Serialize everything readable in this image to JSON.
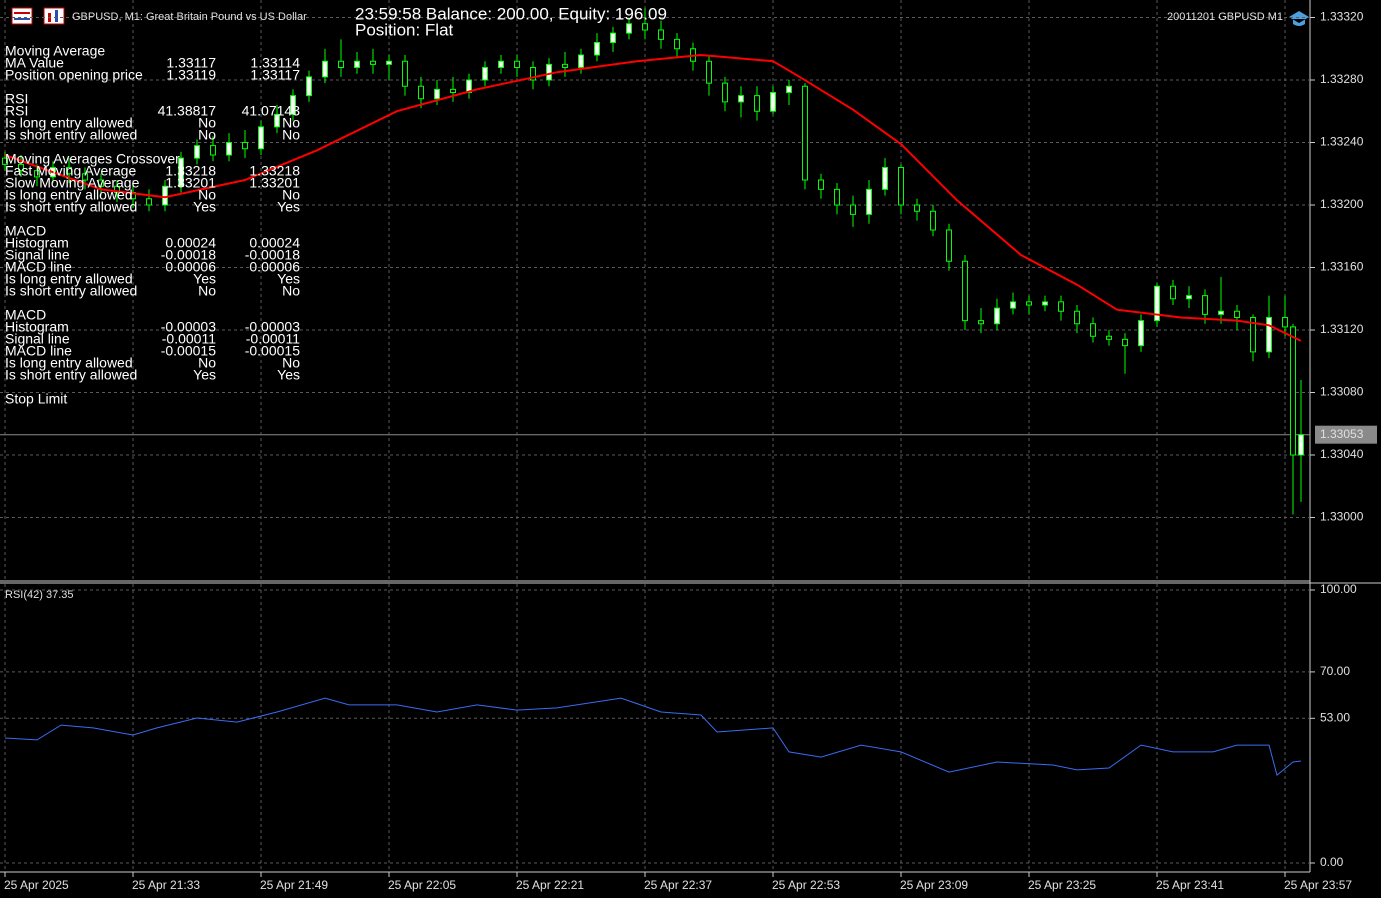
{
  "header": {
    "symbol": "GBPUSD, M1:  Great Britain Pound vs US Dollar",
    "status": "23:59:58 Balance: 200.00, Equity: 196.09",
    "position": "Position: Flat",
    "expert": "20011201 GBPUSD M1"
  },
  "info": [
    {
      "title": "Moving Average",
      "rows": [
        [
          "MA Value",
          "1.33117",
          "1.33114"
        ],
        [
          "Position opening price",
          "1.33119",
          "1.33117"
        ]
      ]
    },
    {
      "title": "RSI",
      "rows": [
        [
          "RSI",
          "41.38817",
          "41.07143"
        ],
        [
          "Is long entry allowed",
          "No",
          "No"
        ],
        [
          "Is short entry allowed",
          "No",
          "No"
        ]
      ]
    },
    {
      "title": "Moving Averages Crossover",
      "rows": [
        [
          "Fast Moving Average",
          "1.33218",
          "1.33218"
        ],
        [
          "Slow Moving Average",
          "1.33201",
          "1.33201"
        ],
        [
          "Is long entry allowed",
          "No",
          "No"
        ],
        [
          "Is short entry allowed",
          "Yes",
          "Yes"
        ]
      ]
    },
    {
      "title": "MACD",
      "rows": [
        [
          "Histogram",
          "0.00024",
          "0.00024"
        ],
        [
          "Signal line",
          "-0.00018",
          "-0.00018"
        ],
        [
          "MACD line",
          "0.00006",
          "0.00006"
        ],
        [
          "Is long entry allowed",
          "Yes",
          "Yes"
        ],
        [
          "Is short entry allowed",
          "No",
          "No"
        ]
      ]
    },
    {
      "title": "MACD",
      "rows": [
        [
          "Histogram",
          "-0.00003",
          "-0.00003"
        ],
        [
          "Signal line",
          "-0.00011",
          "-0.00011"
        ],
        [
          "MACD line",
          "-0.00015",
          "-0.00015"
        ],
        [
          "Is long entry allowed",
          "No",
          "No"
        ],
        [
          "Is short entry allowed",
          "Yes",
          "Yes"
        ]
      ]
    },
    {
      "title": "Stop Limit",
      "rows": []
    }
  ],
  "chart_data": [
    {
      "type": "candlestick",
      "xlim": [
        0,
        163
      ],
      "ylim": [
        1.3296,
        1.33328
      ],
      "yticks": [
        {
          "value": 1.33,
          "label": "1.33000"
        },
        {
          "value": 1.3304,
          "label": "1.33040"
        },
        {
          "value": 1.3308,
          "label": "1.33080"
        },
        {
          "value": 1.3312,
          "label": "1.33120"
        },
        {
          "value": 1.3316,
          "label": "1.33160"
        },
        {
          "value": 1.332,
          "label": "1.33200"
        },
        {
          "value": 1.3324,
          "label": "1.33240"
        },
        {
          "value": 1.3328,
          "label": "1.33280"
        },
        {
          "value": 1.3332,
          "label": "1.33320"
        }
      ],
      "grid": true,
      "up_color": "#ffffff",
      "down_color": "#000000",
      "wick_color": "#00ff00",
      "current_price": 1.33053,
      "x": [
        0,
        2,
        4,
        6,
        8,
        10,
        12,
        14,
        16,
        18,
        20,
        22,
        24,
        26,
        28,
        30,
        32,
        34,
        36,
        38,
        40,
        42,
        44,
        46,
        48,
        50,
        52,
        54,
        56,
        58,
        60,
        62,
        64,
        66,
        68,
        70,
        72,
        74,
        76,
        78,
        80,
        82,
        84,
        86,
        88,
        90,
        92,
        94,
        96,
        98,
        100,
        102,
        104,
        106,
        108,
        110,
        112,
        114,
        116,
        118,
        120,
        122,
        124,
        126,
        128,
        130,
        132,
        134,
        136,
        138,
        140,
        142,
        144,
        146,
        148,
        150,
        152,
        154,
        156,
        158,
        160,
        161,
        162
      ],
      "open": [
        1.3323,
        1.33226,
        1.33222,
        1.33218,
        1.33224,
        1.3322,
        1.33216,
        1.33212,
        1.33208,
        1.33204,
        1.332,
        1.33212,
        1.3323,
        1.33238,
        1.33232,
        1.3324,
        1.33236,
        1.3325,
        1.33258,
        1.3327,
        1.33282,
        1.33292,
        1.33288,
        1.33292,
        1.3329,
        1.33292,
        1.33276,
        1.33268,
        1.33274,
        1.33272,
        1.3328,
        1.33288,
        1.33292,
        1.33288,
        1.3328,
        1.3329,
        1.33288,
        1.33296,
        1.33304,
        1.3331,
        1.33316,
        1.33312,
        1.33306,
        1.333,
        1.33292,
        1.33278,
        1.33266,
        1.3327,
        1.3326,
        1.33272,
        1.33276,
        1.33216,
        1.3321,
        1.332,
        1.33194,
        1.3321,
        1.33224,
        1.332,
        1.33196,
        1.33184,
        1.33164,
        1.33126,
        1.33124,
        1.33134,
        1.33138,
        1.33136,
        1.33138,
        1.33132,
        1.33124,
        1.33116,
        1.33114,
        1.3311,
        1.33126,
        1.33148,
        1.3314,
        1.33142,
        1.3313,
        1.33132,
        1.33128,
        1.33106,
        1.33128,
        1.33122,
        1.3304
      ],
      "high": [
        1.33234,
        1.33232,
        1.33226,
        1.33228,
        1.3323,
        1.33224,
        1.3322,
        1.33216,
        1.33214,
        1.3321,
        1.33216,
        1.33234,
        1.33242,
        1.33244,
        1.33246,
        1.33248,
        1.33254,
        1.33264,
        1.33274,
        1.33286,
        1.333,
        1.33306,
        1.33298,
        1.333,
        1.33296,
        1.33296,
        1.33282,
        1.3328,
        1.33282,
        1.33284,
        1.33292,
        1.33296,
        1.33296,
        1.33292,
        1.33294,
        1.33298,
        1.333,
        1.3331,
        1.33314,
        1.3332,
        1.33326,
        1.33318,
        1.3331,
        1.33304,
        1.33296,
        1.33282,
        1.33276,
        1.33276,
        1.33276,
        1.3328,
        1.33278,
        1.3322,
        1.33214,
        1.33206,
        1.33216,
        1.3323,
        1.33226,
        1.33204,
        1.332,
        1.33188,
        1.33168,
        1.33134,
        1.3314,
        1.33144,
        1.33142,
        1.33142,
        1.33142,
        1.33136,
        1.33128,
        1.3312,
        1.33118,
        1.3313,
        1.3315,
        1.33152,
        1.33148,
        1.33146,
        1.33154,
        1.33136,
        1.3313,
        1.33142,
        1.33142,
        1.33124,
        1.33088
      ],
      "low": [
        1.33222,
        1.33218,
        1.33212,
        1.33214,
        1.33214,
        1.3321,
        1.33206,
        1.33202,
        1.33198,
        1.33196,
        1.33196,
        1.33208,
        1.33226,
        1.33228,
        1.33228,
        1.3323,
        1.33232,
        1.33246,
        1.33254,
        1.33266,
        1.33278,
        1.33282,
        1.33284,
        1.33284,
        1.3328,
        1.3327,
        1.33262,
        1.33264,
        1.33266,
        1.33268,
        1.33276,
        1.33284,
        1.33282,
        1.33274,
        1.33276,
        1.33282,
        1.33284,
        1.33292,
        1.33298,
        1.33306,
        1.33306,
        1.333,
        1.33294,
        1.33286,
        1.3327,
        1.3326,
        1.33256,
        1.33254,
        1.33258,
        1.33264,
        1.3321,
        1.33204,
        1.33194,
        1.33186,
        1.33188,
        1.33206,
        1.33194,
        1.3319,
        1.3318,
        1.33158,
        1.3312,
        1.33118,
        1.3312,
        1.3313,
        1.3313,
        1.33132,
        1.33126,
        1.33118,
        1.33112,
        1.3311,
        1.33092,
        1.33106,
        1.33122,
        1.33136,
        1.33134,
        1.33124,
        1.33124,
        1.3312,
        1.331,
        1.33102,
        1.33116,
        1.33002,
        1.3301
      ],
      "close": [
        1.33226,
        1.33222,
        1.33218,
        1.33224,
        1.3322,
        1.33216,
        1.33212,
        1.33208,
        1.33204,
        1.332,
        1.33212,
        1.3323,
        1.33238,
        1.33232,
        1.3324,
        1.33236,
        1.3325,
        1.33258,
        1.3327,
        1.33282,
        1.33292,
        1.33288,
        1.33292,
        1.3329,
        1.33292,
        1.33276,
        1.33268,
        1.33274,
        1.33272,
        1.3328,
        1.33288,
        1.33292,
        1.33288,
        1.3328,
        1.3329,
        1.33288,
        1.33296,
        1.33304,
        1.3331,
        1.33316,
        1.33312,
        1.33306,
        1.333,
        1.33292,
        1.33278,
        1.33266,
        1.3327,
        1.3326,
        1.33272,
        1.33276,
        1.33216,
        1.3321,
        1.332,
        1.33194,
        1.3321,
        1.33224,
        1.332,
        1.33196,
        1.33184,
        1.33164,
        1.33126,
        1.33124,
        1.33134,
        1.33138,
        1.33136,
        1.33138,
        1.33132,
        1.33124,
        1.33116,
        1.33114,
        1.3311,
        1.33126,
        1.33148,
        1.3314,
        1.33142,
        1.3313,
        1.33132,
        1.33128,
        1.33106,
        1.33128,
        1.33122,
        1.3304,
        1.33053
      ],
      "lines": [
        {
          "color": "#ff0000",
          "x": [
            0,
            12,
            20,
            30,
            39,
            49,
            59,
            69,
            79,
            87,
            96,
            99,
            106,
            112,
            119,
            127,
            134,
            139,
            147,
            154,
            158,
            162
          ],
          "values": [
            1.33232,
            1.3321,
            1.33205,
            1.33216,
            1.33235,
            1.3326,
            1.33274,
            1.33285,
            1.33292,
            1.33296,
            1.33292,
            1.33283,
            1.33261,
            1.33239,
            1.33203,
            1.33168,
            1.33149,
            1.33133,
            1.33128,
            1.33126,
            1.33123,
            1.33113
          ]
        }
      ]
    },
    {
      "type": "line",
      "title": "RSI(42) 37.35",
      "xlim": [
        0,
        163
      ],
      "ylim": [
        0,
        100
      ],
      "yticks": [
        {
          "value": 0,
          "label": "0.00"
        },
        {
          "value": 53,
          "label": "53.00"
        },
        {
          "value": 70,
          "label": "70.00"
        },
        {
          "value": 100,
          "label": "100.00"
        }
      ],
      "xticks": [
        {
          "value": 0,
          "label": "25 Apr 2025"
        },
        {
          "value": 16,
          "label": "25 Apr 21:33"
        },
        {
          "value": 32,
          "label": "25 Apr 21:49"
        },
        {
          "value": 48,
          "label": "25 Apr 22:05"
        },
        {
          "value": 64,
          "label": "25 Apr 22:21"
        },
        {
          "value": 80,
          "label": "25 Apr 22:37"
        },
        {
          "value": 96,
          "label": "25 Apr 22:53"
        },
        {
          "value": 112,
          "label": "25 Apr 23:09"
        },
        {
          "value": 128,
          "label": "25 Apr 23:25"
        },
        {
          "value": 144,
          "label": "25 Apr 23:41"
        },
        {
          "value": 160,
          "label": "25 Apr 23:57"
        }
      ],
      "grid": true,
      "series": [
        {
          "color": "#3a6cf4",
          "x": [
            0,
            4,
            7,
            11,
            16,
            19,
            24,
            29,
            34,
            40,
            43,
            49,
            54,
            59,
            64,
            69,
            77,
            82,
            87,
            89,
            96,
            98,
            102,
            107,
            112,
            118,
            124,
            131,
            134,
            138,
            142,
            146,
            151,
            154,
            158,
            159,
            161,
            162
          ],
          "values": [
            45.8,
            45.1,
            50.5,
            49.5,
            46.9,
            49.5,
            53.1,
            51.6,
            55.3,
            60.4,
            57.9,
            57.9,
            55.3,
            57.9,
            56.0,
            56.8,
            60.4,
            55.3,
            54.2,
            48.0,
            49.5,
            40.7,
            38.8,
            43.2,
            40.7,
            33.3,
            37.0,
            35.9,
            34.1,
            34.8,
            43.2,
            40.7,
            40.7,
            43.2,
            43.2,
            32.2,
            37.0,
            37.35
          ]
        }
      ]
    }
  ]
}
